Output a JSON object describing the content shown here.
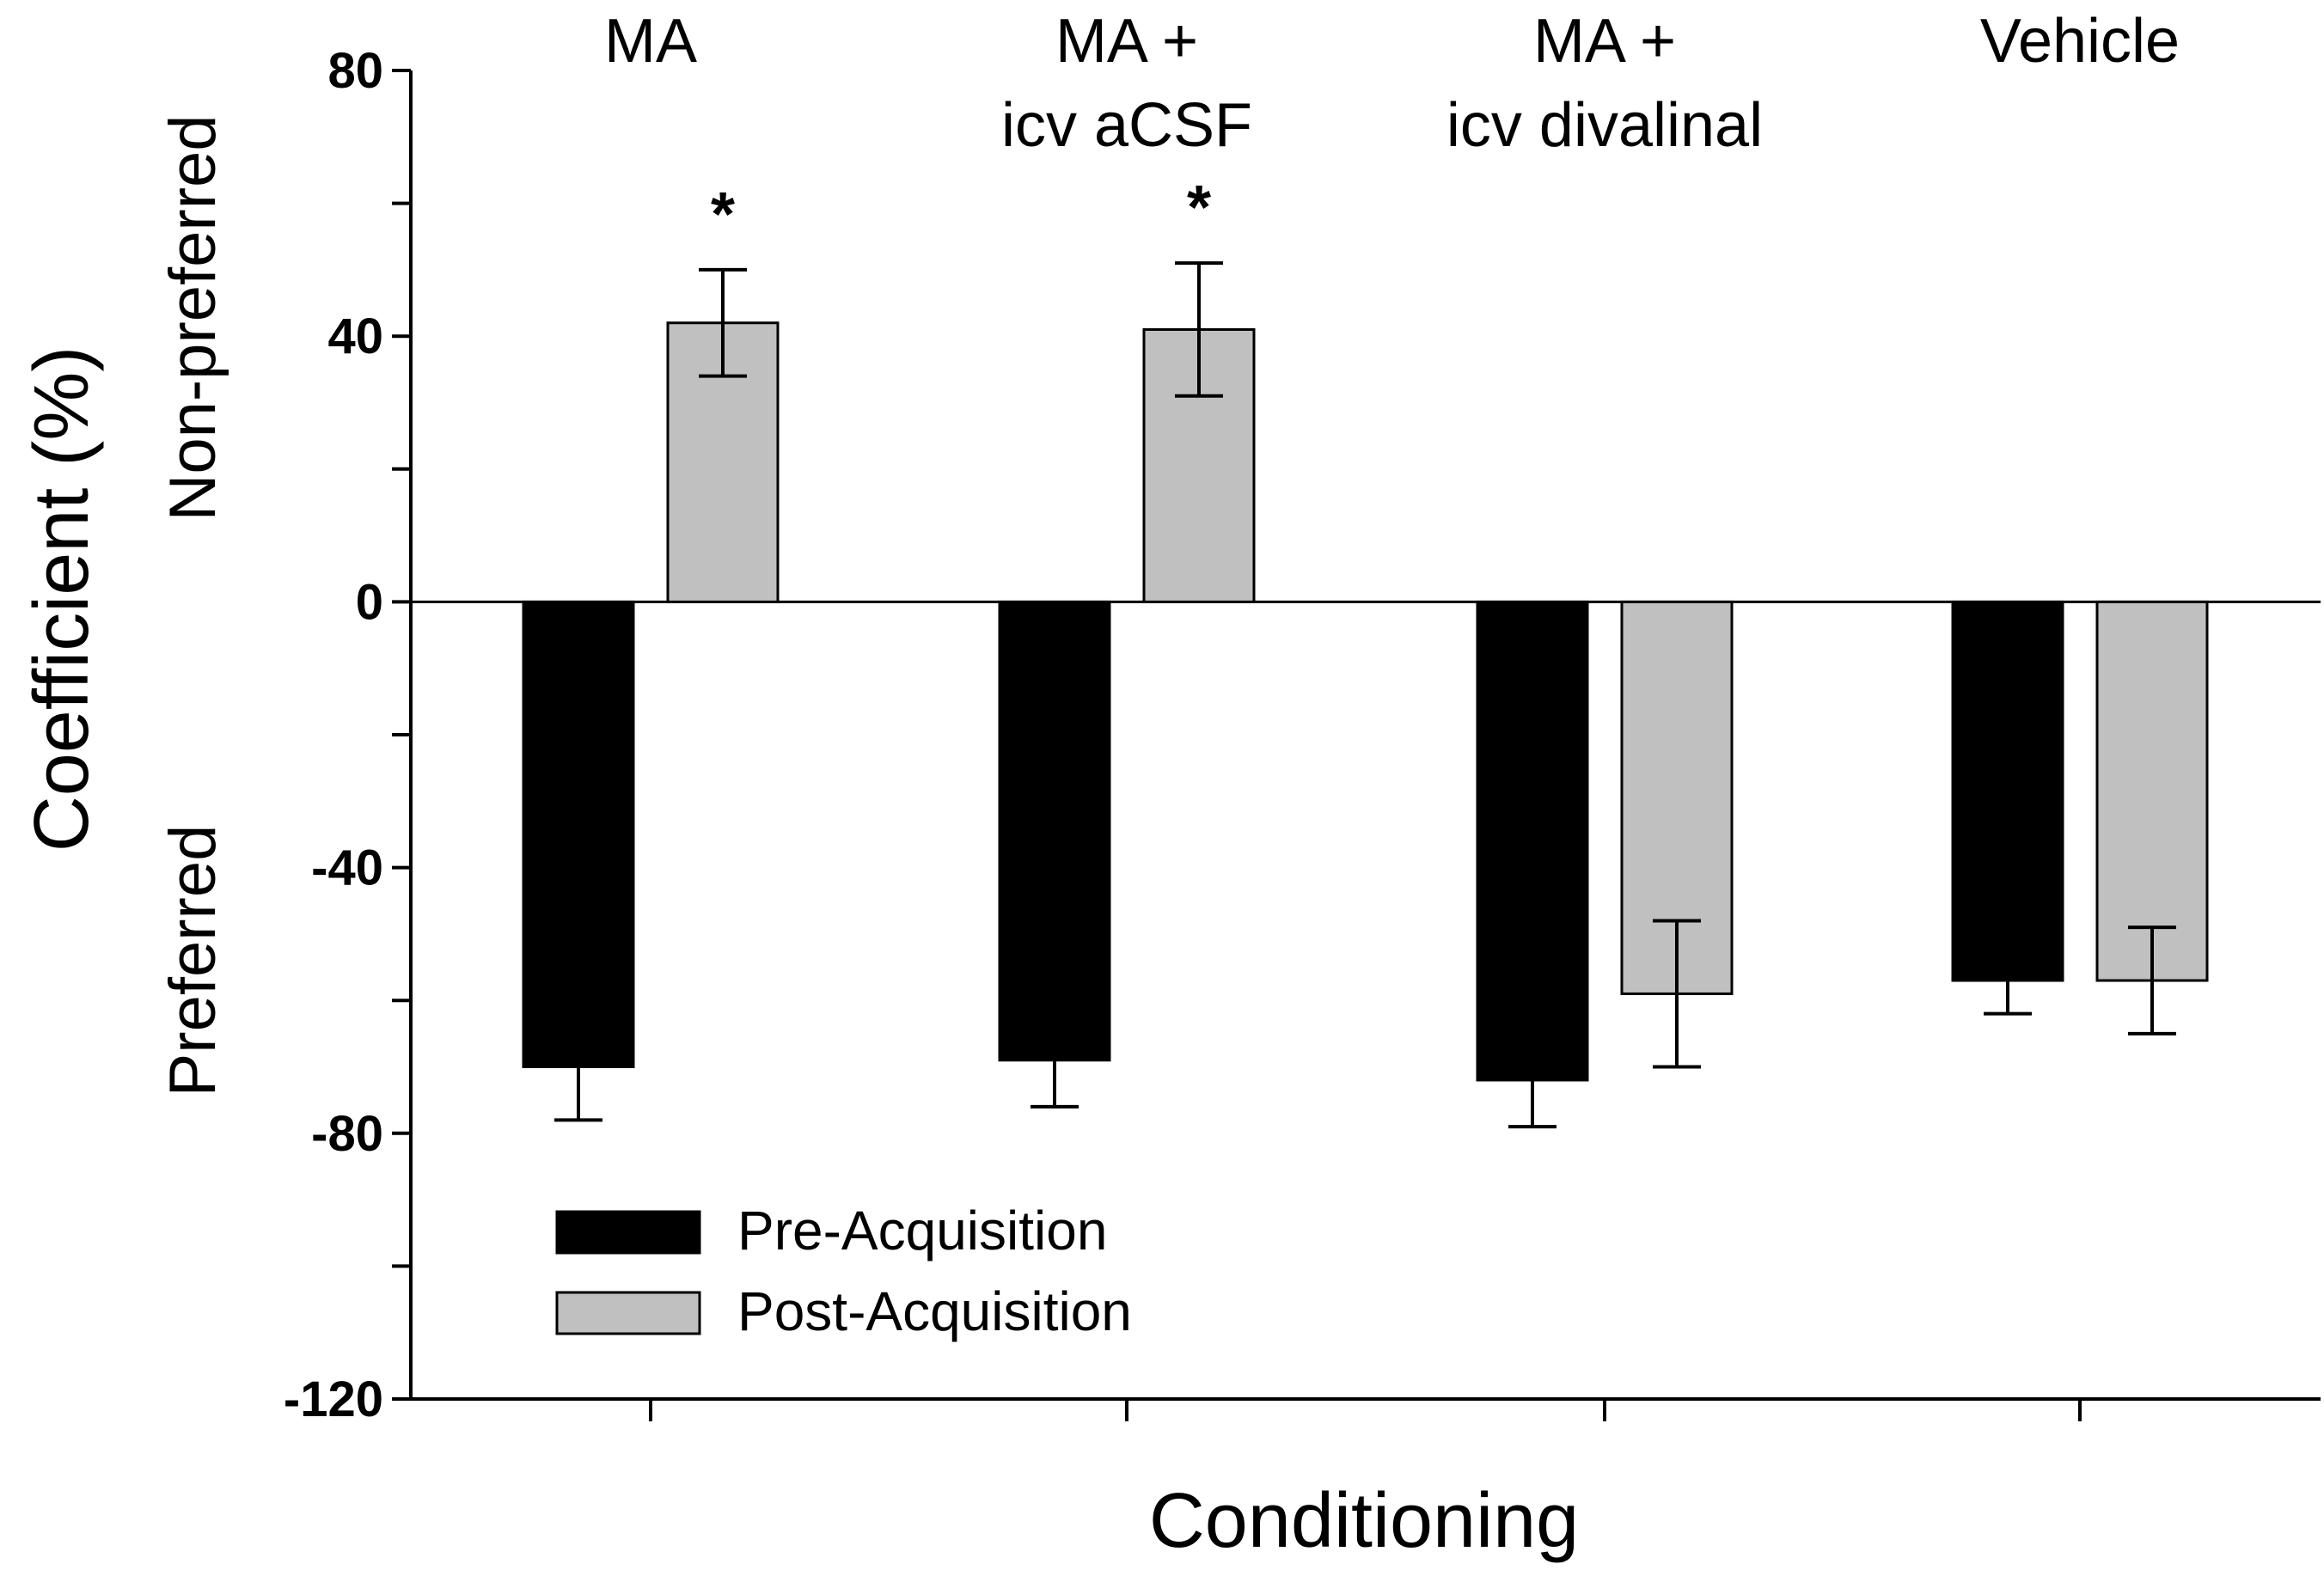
{
  "chart_data": {
    "type": "bar",
    "title": "",
    "xlabel": "Conditioning",
    "ylabel": "Coefficient (%)",
    "y_direction_labels": {
      "top": "Non-preferred",
      "bottom": "Preferred"
    },
    "ylim": [
      -120,
      80
    ],
    "y_ticks": [
      80,
      40,
      0,
      -40,
      -80,
      -120
    ],
    "y_ticks_minor": [
      60,
      20,
      -20,
      -60,
      -100
    ],
    "categories": [
      [
        "MA"
      ],
      [
        "MA  +",
        "icv aCSF"
      ],
      [
        "MA  +",
        "icv divalinal"
      ],
      [
        "Vehicle"
      ]
    ],
    "series": [
      {
        "name": "Pre-Acquisition",
        "color": "#000000",
        "values": [
          -70,
          -69,
          -72,
          -57
        ],
        "errors": [
          8,
          7,
          7,
          5
        ]
      },
      {
        "name": "Post-Acquisition",
        "color": "#c0c0c0",
        "values": [
          42,
          41,
          -59,
          -57
        ],
        "errors": [
          8,
          10,
          11,
          8
        ]
      }
    ],
    "significance": [
      {
        "category": 0,
        "series": 1,
        "marker": "*"
      },
      {
        "category": 1,
        "series": 1,
        "marker": "*"
      }
    ],
    "legend": {
      "position": "bottom-left"
    },
    "grid": false
  }
}
